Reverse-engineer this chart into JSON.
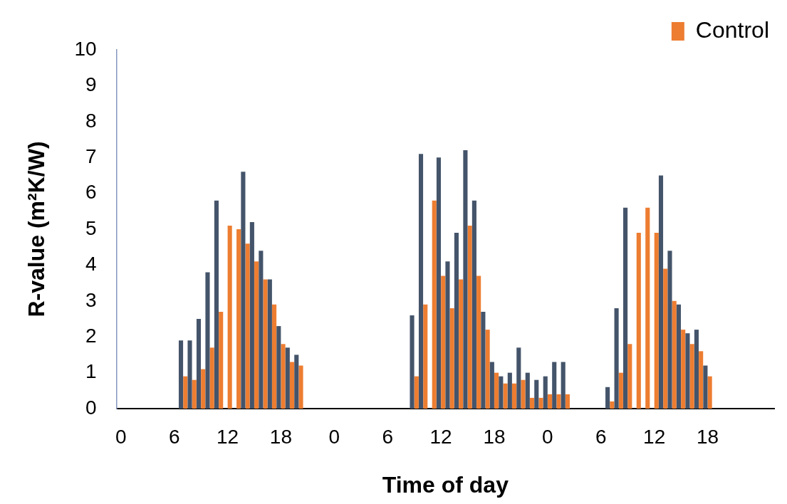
{
  "chart_data": {
    "type": "bar",
    "xlabel": "Time of day",
    "ylabel": "R-value (m²K/W)",
    "categories": [
      "0",
      null,
      null,
      null,
      null,
      null,
      "6",
      null,
      null,
      null,
      null,
      null,
      "12",
      null,
      null,
      null,
      null,
      null,
      "18",
      null,
      null,
      null,
      null,
      null,
      "0",
      null,
      null,
      null,
      null,
      null,
      "6",
      null,
      null,
      null,
      null,
      null,
      "12",
      null,
      null,
      null,
      null,
      null,
      "18",
      null,
      null,
      null,
      null,
      null,
      "0",
      null,
      null,
      null,
      null,
      null,
      "6",
      null,
      null,
      null,
      null,
      null,
      "12",
      null,
      null,
      null,
      null,
      null,
      "18",
      null,
      null,
      null,
      null,
      null,
      null,
      null
    ],
    "series": [
      {
        "color": "#44546a",
        "values": [
          null,
          null,
          null,
          null,
          null,
          null,
          null,
          1.9,
          1.9,
          2.5,
          3.8,
          5.8,
          null,
          null,
          6.6,
          5.2,
          4.4,
          3.6,
          2.3,
          1.7,
          1.5,
          null,
          null,
          null,
          null,
          null,
          null,
          null,
          null,
          null,
          null,
          null,
          null,
          2.6,
          7.1,
          null,
          7.0,
          4.1,
          4.9,
          7.2,
          5.8,
          2.7,
          1.3,
          0.9,
          1.0,
          1.7,
          1.0,
          0.8,
          0.9,
          1.3,
          1.3,
          null,
          null,
          null,
          null,
          0.6,
          2.8,
          5.6,
          null,
          null,
          null,
          6.5,
          4.4,
          2.9,
          2.1,
          2.2,
          1.2,
          null,
          null,
          null,
          null,
          null,
          null,
          null
        ]
      },
      {
        "name": "Control",
        "color": "#ed7d31",
        "values": [
          null,
          null,
          null,
          null,
          null,
          null,
          null,
          0.9,
          0.8,
          1.1,
          1.7,
          2.7,
          5.1,
          5.0,
          4.6,
          4.1,
          3.6,
          2.9,
          1.8,
          1.3,
          1.2,
          null,
          null,
          null,
          null,
          null,
          null,
          null,
          null,
          null,
          null,
          null,
          null,
          0.9,
          2.9,
          5.8,
          3.7,
          2.8,
          3.6,
          5.1,
          3.7,
          2.2,
          1.0,
          0.7,
          0.7,
          0.8,
          0.3,
          0.3,
          0.4,
          0.4,
          0.4,
          null,
          null,
          null,
          null,
          0.2,
          1.0,
          1.8,
          4.9,
          5.6,
          4.9,
          3.9,
          3.0,
          2.2,
          1.8,
          1.6,
          0.9,
          null,
          null,
          null,
          null,
          null,
          null,
          null
        ]
      }
    ],
    "ylim": [
      0,
      10
    ],
    "yticks": [
      0,
      1,
      2,
      3,
      4,
      5,
      6,
      7,
      8,
      9,
      10
    ],
    "grid": false,
    "legend": "top right"
  }
}
